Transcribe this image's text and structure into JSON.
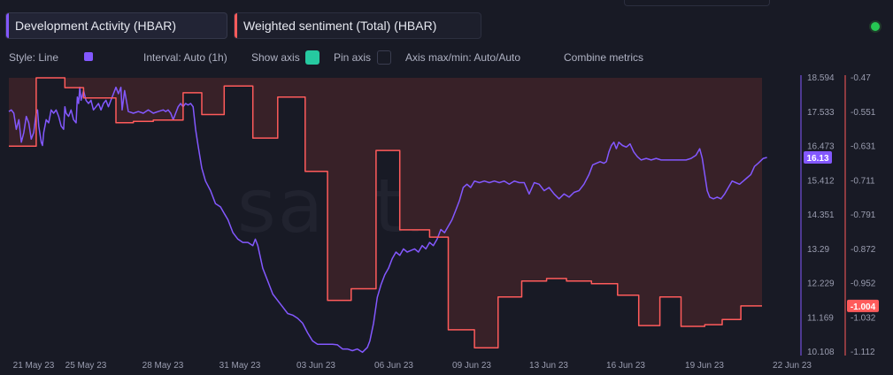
{
  "tabs": [
    {
      "label": "Development Activity (HBAR)",
      "color": "#8358ff"
    },
    {
      "label": "Weighted sentiment (Total) (HBAR)",
      "color": "#ff5b5b"
    }
  ],
  "toolbar": {
    "style": "Style: Line",
    "interval": "Interval: Auto (1h)",
    "show_axis": "Show axis",
    "pin_axis": "Pin axis",
    "axis_minmax": "Axis max/min: Auto/Auto",
    "combine": "Combine metrics"
  },
  "watermark": "santiment",
  "chart_data": {
    "type": "line",
    "x_ticks": [
      "21 May 23",
      "25 May 23",
      "28 May 23",
      "31 May 23",
      "03 Jun 23",
      "06 Jun 23",
      "09 Jun 23",
      "13 Jun 23",
      "16 Jun 23",
      "19 Jun 23",
      "22 Jun 23"
    ],
    "grid": false,
    "left_axis": {
      "series": "Development Activity (HBAR)",
      "ticks": [
        "18.594",
        "17.533",
        "16.473",
        "15.412",
        "14.351",
        "13.29",
        "12.229",
        "11.169",
        "10.108"
      ],
      "ylim": [
        10.108,
        18.594
      ],
      "last_value": "16.13"
    },
    "right_axis": {
      "series": "Weighted sentiment (Total) (HBAR)",
      "ticks": [
        "-0.47",
        "-0.551",
        "-0.631",
        "-0.711",
        "-0.791",
        "-0.872",
        "-0.952",
        "-1.032",
        "-1.112"
      ],
      "ylim": [
        -1.112,
        -0.47
      ],
      "last_value": "-1.004"
    },
    "series": [
      {
        "name": "Development Activity (HBAR)",
        "color": "#8358ff",
        "points": [
          [
            0,
            17.55
          ],
          [
            0.2,
            17.6
          ],
          [
            0.4,
            17.5
          ],
          [
            0.6,
            17.0
          ],
          [
            0.8,
            17.3
          ],
          [
            1.0,
            16.6
          ],
          [
            1.2,
            16.9
          ],
          [
            1.4,
            17.4
          ],
          [
            1.6,
            17.2
          ],
          [
            1.8,
            16.7
          ],
          [
            2.0,
            16.9
          ],
          [
            2.2,
            17.5
          ],
          [
            2.3,
            17.6
          ],
          [
            2.4,
            17.1
          ],
          [
            2.6,
            16.6
          ],
          [
            2.7,
            16.5
          ],
          [
            2.8,
            16.9
          ],
          [
            3.0,
            17.3
          ],
          [
            3.2,
            17.2
          ],
          [
            3.4,
            17.6
          ],
          [
            3.6,
            17.5
          ],
          [
            3.8,
            17.6
          ],
          [
            4.0,
            17.4
          ],
          [
            4.2,
            17.1
          ],
          [
            4.4,
            17.0
          ],
          [
            4.5,
            17.7
          ],
          [
            4.6,
            17.5
          ],
          [
            4.8,
            17.4
          ],
          [
            5.0,
            17.6
          ],
          [
            5.2,
            17.3
          ],
          [
            5.4,
            17.2
          ],
          [
            5.5,
            18.0
          ],
          [
            5.6,
            17.8
          ],
          [
            5.7,
            18.3
          ],
          [
            5.8,
            17.9
          ],
          [
            6.0,
            18.2
          ],
          [
            6.2,
            17.9
          ],
          [
            6.4,
            17.8
          ],
          [
            6.6,
            17.9
          ],
          [
            6.8,
            17.6
          ],
          [
            7.0,
            17.7
          ],
          [
            7.2,
            17.8
          ],
          [
            7.4,
            17.6
          ],
          [
            7.6,
            17.8
          ],
          [
            7.8,
            17.9
          ],
          [
            8.0,
            17.7
          ],
          [
            8.2,
            17.9
          ],
          [
            8.4,
            18.1
          ],
          [
            8.6,
            18.3
          ],
          [
            8.8,
            18.1
          ],
          [
            9.0,
            18.3
          ],
          [
            9.1,
            17.6
          ],
          [
            9.3,
            18.2
          ],
          [
            9.6,
            17.55
          ],
          [
            10.0,
            17.5
          ],
          [
            10.4,
            17.55
          ],
          [
            10.8,
            17.5
          ],
          [
            11.2,
            17.6
          ],
          [
            11.6,
            17.5
          ],
          [
            12.0,
            17.55
          ],
          [
            12.4,
            17.6
          ],
          [
            12.6,
            17.55
          ],
          [
            12.8,
            17.6
          ],
          [
            13.0,
            17.5
          ],
          [
            13.2,
            17.3
          ],
          [
            13.4,
            17.5
          ],
          [
            13.6,
            17.7
          ],
          [
            13.8,
            17.8
          ],
          [
            14.0,
            17.7
          ],
          [
            14.2,
            17.8
          ],
          [
            14.4,
            17.75
          ],
          [
            14.6,
            17.8
          ],
          [
            14.8,
            17.7
          ],
          [
            15.0,
            17.0
          ],
          [
            15.2,
            16.5
          ],
          [
            15.5,
            15.8
          ],
          [
            15.8,
            15.4
          ],
          [
            16.2,
            15.1
          ],
          [
            16.6,
            14.7
          ],
          [
            17.0,
            14.6
          ],
          [
            17.3,
            14.4
          ],
          [
            17.6,
            14.2
          ],
          [
            18.0,
            13.8
          ],
          [
            18.4,
            13.6
          ],
          [
            18.8,
            13.5
          ],
          [
            19.2,
            13.5
          ],
          [
            19.6,
            13.4
          ],
          [
            19.8,
            13.6
          ],
          [
            20.0,
            13.4
          ],
          [
            20.4,
            12.7
          ],
          [
            20.8,
            12.3
          ],
          [
            21.2,
            11.9
          ],
          [
            21.6,
            11.7
          ],
          [
            22.0,
            11.5
          ],
          [
            22.4,
            11.3
          ],
          [
            22.8,
            11.25
          ],
          [
            23.2,
            11.15
          ],
          [
            23.6,
            11.0
          ],
          [
            24.0,
            10.7
          ],
          [
            24.4,
            10.45
          ],
          [
            24.8,
            10.35
          ],
          [
            25.2,
            10.35
          ],
          [
            25.6,
            10.35
          ],
          [
            26.0,
            10.35
          ],
          [
            26.4,
            10.33
          ],
          [
            26.8,
            10.2
          ],
          [
            27.2,
            10.2
          ],
          [
            27.6,
            10.15
          ],
          [
            28.0,
            10.2
          ],
          [
            28.4,
            10.1
          ],
          [
            28.8,
            10.25
          ],
          [
            29.0,
            10.45
          ],
          [
            29.3,
            11.0
          ],
          [
            29.6,
            11.8
          ],
          [
            29.9,
            12.2
          ],
          [
            30.2,
            12.5
          ],
          [
            30.5,
            12.7
          ],
          [
            30.8,
            13.0
          ],
          [
            31.1,
            13.2
          ],
          [
            31.4,
            13.1
          ],
          [
            31.7,
            13.3
          ],
          [
            32.0,
            13.2
          ],
          [
            32.3,
            13.25
          ],
          [
            32.6,
            13.3
          ],
          [
            32.9,
            13.2
          ],
          [
            33.2,
            13.4
          ],
          [
            33.5,
            13.3
          ],
          [
            33.8,
            13.5
          ],
          [
            34.1,
            13.4
          ],
          [
            34.4,
            13.6
          ],
          [
            34.7,
            13.9
          ],
          [
            35.0,
            13.8
          ],
          [
            35.3,
            14.0
          ],
          [
            35.6,
            14.2
          ],
          [
            35.9,
            14.5
          ],
          [
            36.2,
            14.8
          ],
          [
            36.5,
            15.2
          ],
          [
            36.8,
            15.3
          ],
          [
            37.1,
            15.2
          ],
          [
            37.4,
            15.4
          ],
          [
            37.8,
            15.35
          ],
          [
            38.2,
            15.4
          ],
          [
            38.6,
            15.35
          ],
          [
            39.0,
            15.4
          ],
          [
            39.4,
            15.35
          ],
          [
            39.8,
            15.4
          ],
          [
            40.2,
            15.3
          ],
          [
            40.6,
            15.4
          ],
          [
            41.0,
            15.35
          ],
          [
            41.4,
            15.35
          ],
          [
            41.8,
            15.0
          ],
          [
            42.2,
            15.35
          ],
          [
            42.6,
            15.3
          ],
          [
            43.0,
            15.1
          ],
          [
            43.4,
            15.2
          ],
          [
            43.8,
            15.0
          ],
          [
            44.2,
            14.85
          ],
          [
            44.6,
            15.0
          ],
          [
            45.0,
            14.9
          ],
          [
            45.4,
            15.05
          ],
          [
            45.8,
            15.1
          ],
          [
            46.2,
            15.3
          ],
          [
            46.6,
            15.6
          ],
          [
            46.9,
            15.9
          ],
          [
            47.2,
            15.95
          ],
          [
            47.5,
            16.0
          ],
          [
            47.8,
            15.95
          ],
          [
            48.0,
            16.0
          ],
          [
            48.2,
            16.3
          ],
          [
            48.4,
            16.5
          ],
          [
            48.6,
            16.6
          ],
          [
            48.8,
            16.4
          ],
          [
            49.0,
            16.6
          ],
          [
            49.3,
            16.5
          ],
          [
            49.6,
            16.45
          ],
          [
            49.9,
            16.55
          ],
          [
            50.2,
            16.3
          ],
          [
            50.5,
            16.15
          ],
          [
            50.8,
            16.05
          ],
          [
            51.2,
            16.1
          ],
          [
            51.6,
            16.05
          ],
          [
            52.0,
            16.1
          ],
          [
            52.4,
            16.05
          ],
          [
            52.8,
            16.05
          ],
          [
            53.2,
            16.05
          ],
          [
            53.6,
            16.05
          ],
          [
            54.0,
            16.05
          ],
          [
            54.4,
            16.05
          ],
          [
            54.8,
            16.1
          ],
          [
            55.2,
            16.2
          ],
          [
            55.5,
            16.4
          ],
          [
            55.7,
            16.1
          ],
          [
            55.9,
            15.6
          ],
          [
            56.1,
            15.1
          ],
          [
            56.3,
            14.9
          ],
          [
            56.6,
            14.85
          ],
          [
            56.9,
            14.9
          ],
          [
            57.2,
            14.85
          ],
          [
            57.5,
            15.0
          ],
          [
            57.8,
            15.2
          ],
          [
            58.1,
            15.4
          ],
          [
            58.4,
            15.35
          ],
          [
            58.7,
            15.3
          ],
          [
            59.0,
            15.4
          ],
          [
            59.3,
            15.5
          ],
          [
            59.6,
            15.6
          ],
          [
            59.9,
            15.85
          ],
          [
            60.2,
            15.95
          ],
          [
            60.6,
            16.1
          ],
          [
            60.9,
            16.13
          ]
        ]
      },
      {
        "name": "Weighted sentiment (Total) (HBAR)",
        "color": "#ff5b5b",
        "points": [
          [
            0,
            -0.63
          ],
          [
            2.2,
            -0.63
          ],
          [
            2.2,
            -0.47
          ],
          [
            4.5,
            -0.47
          ],
          [
            4.5,
            -0.493
          ],
          [
            6.0,
            -0.493
          ],
          [
            6.0,
            -0.517
          ],
          [
            8.6,
            -0.517
          ],
          [
            8.6,
            -0.575
          ],
          [
            10.0,
            -0.575
          ],
          [
            10.0,
            -0.572
          ],
          [
            11.6,
            -0.572
          ],
          [
            11.6,
            -0.569
          ],
          [
            14.0,
            -0.569
          ],
          [
            14.0,
            -0.505
          ],
          [
            15.5,
            -0.505
          ],
          [
            15.5,
            -0.556
          ],
          [
            17.3,
            -0.556
          ],
          [
            17.3,
            -0.489
          ],
          [
            19.6,
            -0.489
          ],
          [
            19.6,
            -0.611
          ],
          [
            21.6,
            -0.611
          ],
          [
            21.6,
            -0.515
          ],
          [
            23.8,
            -0.515
          ],
          [
            23.8,
            -0.689
          ],
          [
            25.6,
            -0.689
          ],
          [
            25.6,
            -0.991
          ],
          [
            27.5,
            -0.991
          ],
          [
            27.5,
            -0.964
          ],
          [
            29.5,
            -0.964
          ],
          [
            29.5,
            -0.64
          ],
          [
            31.4,
            -0.64
          ],
          [
            31.4,
            -0.826
          ],
          [
            33.8,
            -0.826
          ],
          [
            33.8,
            -0.843
          ],
          [
            35.3,
            -0.843
          ],
          [
            35.3,
            -1.06
          ],
          [
            37.4,
            -1.06
          ],
          [
            37.4,
            -1.102
          ],
          [
            39.3,
            -1.102
          ],
          [
            39.3,
            -0.983
          ],
          [
            41.2,
            -0.983
          ],
          [
            41.2,
            -0.946
          ],
          [
            43.2,
            -0.946
          ],
          [
            43.2,
            -0.94
          ],
          [
            44.8,
            -0.94
          ],
          [
            44.8,
            -0.946
          ],
          [
            46.8,
            -0.946
          ],
          [
            46.8,
            -0.952
          ],
          [
            48.9,
            -0.952
          ],
          [
            48.9,
            -0.979
          ],
          [
            50.6,
            -0.979
          ],
          [
            50.6,
            -1.05
          ],
          [
            52.3,
            -1.05
          ],
          [
            52.3,
            -0.983
          ],
          [
            54.0,
            -0.983
          ],
          [
            54.0,
            -1.052
          ],
          [
            55.9,
            -1.052
          ],
          [
            55.9,
            -1.048
          ],
          [
            57.3,
            -1.048
          ],
          [
            57.3,
            -1.036
          ],
          [
            58.8,
            -1.036
          ],
          [
            58.8,
            -1.004
          ],
          [
            60.5,
            -1.004
          ]
        ]
      }
    ]
  }
}
